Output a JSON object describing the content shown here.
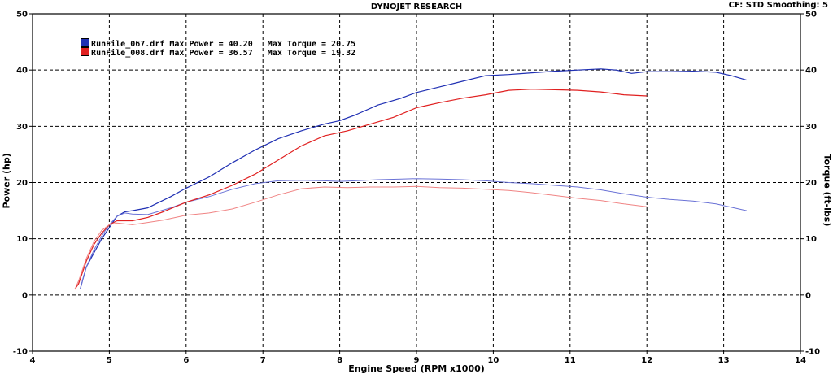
{
  "header": {
    "title": "DYNOJET RESEARCH",
    "cf_info": "CF: STD  Smoothing: 5"
  },
  "legend": [
    {
      "label": "RunFile_067.drf Max Power = 40.20   Max Torque = 20.75",
      "color": "#1f2fb3"
    },
    {
      "label": "RunFile_008.drf Max Power = 36.57   Max Torque = 19.32",
      "color": "#e02020"
    }
  ],
  "chart_data": {
    "type": "line",
    "title": "DYNOJET RESEARCH",
    "xlabel": "Engine Speed (RPM x1000)",
    "ylabel": "Power (hp)",
    "ylabel_right": "Torque (ft-lbs)",
    "xlim": [
      4,
      14
    ],
    "ylim": [
      -10,
      50
    ],
    "xticks": [
      4,
      5,
      6,
      7,
      8,
      9,
      10,
      11,
      12,
      13,
      14
    ],
    "yticks": [
      -10,
      0,
      10,
      20,
      30,
      40,
      50
    ],
    "grid": true,
    "legend_position": "top-left",
    "series": [
      {
        "name": "RunFile_067.drf",
        "measure": "Power",
        "color": "#1f2fb3",
        "width": 1.2,
        "x": [
          4.62,
          4.7,
          4.8,
          4.9,
          5.0,
          5.1,
          5.2,
          5.3,
          5.5,
          5.8,
          6.0,
          6.3,
          6.6,
          6.9,
          7.2,
          7.5,
          7.8,
          8.0,
          8.2,
          8.5,
          8.8,
          9.0,
          9.3,
          9.6,
          9.9,
          10.2,
          10.5,
          10.8,
          11.1,
          11.4,
          11.6,
          11.8,
          12.0,
          12.3,
          12.6,
          12.9,
          13.1,
          13.3
        ],
        "y": [
          1,
          5,
          7.5,
          10,
          12,
          14,
          14.8,
          15,
          15.5,
          17.5,
          19,
          21,
          23.5,
          25.8,
          27.8,
          29.2,
          30.4,
          31,
          32,
          33.8,
          35,
          36,
          37,
          38,
          39,
          39.2,
          39.5,
          39.8,
          40,
          40.2,
          40,
          39.4,
          39.7,
          39.7,
          39.8,
          39.6,
          39,
          38.2
        ]
      },
      {
        "name": "RunFile_067.drf",
        "measure": "Torque",
        "color": "#6a72d6",
        "width": 1,
        "x": [
          4.62,
          4.7,
          4.8,
          4.9,
          5.0,
          5.1,
          5.2,
          5.3,
          5.5,
          5.8,
          6.0,
          6.3,
          6.6,
          6.9,
          7.2,
          7.5,
          7.8,
          8.0,
          8.2,
          8.5,
          8.8,
          9.0,
          9.3,
          9.6,
          9.9,
          10.2,
          10.5,
          10.8,
          11.1,
          11.4,
          11.7,
          12.0,
          12.3,
          12.6,
          12.9,
          13.1,
          13.3
        ],
        "y": [
          1,
          5,
          8,
          10.5,
          12.5,
          14,
          14.6,
          14.4,
          14.3,
          15.5,
          16.5,
          17.5,
          18.8,
          19.8,
          20.3,
          20.4,
          20.3,
          20.2,
          20.3,
          20.5,
          20.6,
          20.7,
          20.6,
          20.5,
          20.3,
          20,
          19.8,
          19.5,
          19.2,
          18.7,
          18,
          17.4,
          17,
          16.7,
          16.2,
          15.6,
          15
        ]
      },
      {
        "name": "RunFile_008.drf",
        "measure": "Power",
        "color": "#e02020",
        "width": 1.2,
        "x": [
          4.55,
          4.6,
          4.7,
          4.8,
          4.9,
          5.0,
          5.1,
          5.3,
          5.5,
          5.7,
          6.0,
          6.3,
          6.6,
          6.9,
          7.2,
          7.5,
          7.8,
          8.1,
          8.4,
          8.7,
          9.0,
          9.3,
          9.6,
          9.9,
          10.2,
          10.5,
          10.8,
          11.1,
          11.4,
          11.7,
          12.0
        ],
        "y": [
          1,
          2,
          6,
          9,
          11,
          12.5,
          13.2,
          13.2,
          13.8,
          14.8,
          16.5,
          17.8,
          19.5,
          21.5,
          24,
          26.5,
          28.3,
          29.2,
          30.4,
          31.6,
          33.3,
          34.2,
          35,
          35.6,
          36.4,
          36.6,
          36.5,
          36.4,
          36.1,
          35.6,
          35.4
        ]
      },
      {
        "name": "RunFile_008.drf",
        "measure": "Torque",
        "color": "#f08484",
        "width": 1,
        "x": [
          4.55,
          4.6,
          4.7,
          4.8,
          4.9,
          5.0,
          5.1,
          5.3,
          5.5,
          5.7,
          6.0,
          6.3,
          6.6,
          6.9,
          7.2,
          7.5,
          7.8,
          8.1,
          8.4,
          8.7,
          9.0,
          9.3,
          9.6,
          9.9,
          10.2,
          10.5,
          10.8,
          11.1,
          11.4,
          11.7,
          12.0
        ],
        "y": [
          1,
          2.5,
          6.5,
          9.5,
          11.5,
          12.5,
          12.8,
          12.5,
          12.9,
          13.3,
          14.2,
          14.6,
          15.3,
          16.5,
          17.8,
          18.9,
          19.2,
          19.1,
          19.2,
          19.2,
          19.3,
          19.1,
          19,
          18.8,
          18.6,
          18.2,
          17.7,
          17.2,
          16.8,
          16.2,
          15.7
        ]
      }
    ]
  }
}
